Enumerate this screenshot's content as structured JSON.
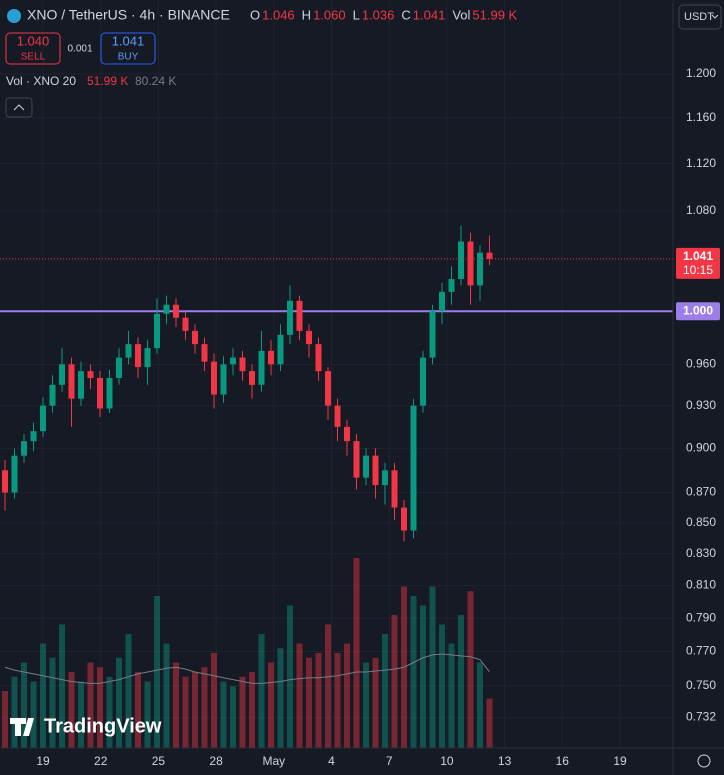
{
  "chart_data": {
    "type": "candlestick",
    "title": "XNO / TetherUS · 4h · BINANCE",
    "header": {
      "o_label": "O",
      "o": "1.046",
      "h_label": "H",
      "h": "1.060",
      "l_label": "L",
      "l": "1.036",
      "c_label": "C",
      "c": "1.041",
      "vol_label": "Vol",
      "vol": "51.99 K"
    },
    "trade": {
      "sell_price": "1.040",
      "sell": "SELL",
      "spread": "0.001",
      "buy_price": "1.041",
      "buy": "BUY"
    },
    "volume_legend": {
      "label": "Vol · XNO 20",
      "vol": "51.99 K",
      "ma": "80.24 K"
    },
    "currency": "USDT",
    "logo": "TradingView",
    "y_scale": "log",
    "grid": true,
    "up_color": "#089981",
    "down_color": "#f23645",
    "ylim": [
      0.715,
      1.27
    ],
    "yticks": [
      {
        "value": 1.2,
        "label": "1.200"
      },
      {
        "value": 1.16,
        "label": "1.160"
      },
      {
        "value": 1.12,
        "label": "1.120"
      },
      {
        "value": 1.08,
        "label": "1.080"
      },
      {
        "value": 0.96,
        "label": "0.960"
      },
      {
        "value": 0.93,
        "label": "0.930"
      },
      {
        "value": 0.9,
        "label": "0.900"
      },
      {
        "value": 0.87,
        "label": "0.870"
      },
      {
        "value": 0.85,
        "label": "0.850"
      },
      {
        "value": 0.83,
        "label": "0.830"
      },
      {
        "value": 0.81,
        "label": "0.810"
      },
      {
        "value": 0.79,
        "label": "0.790"
      },
      {
        "value": 0.77,
        "label": "0.770"
      },
      {
        "value": 0.75,
        "label": "0.750"
      },
      {
        "value": 0.732,
        "label": "0.732"
      }
    ],
    "xticks": [
      "19",
      "22",
      "25",
      "28",
      "May",
      "4",
      "7",
      "10",
      "13",
      "16",
      "19"
    ],
    "hline": {
      "value": 1.0,
      "label": "1.000",
      "color": "#9c7ee8"
    },
    "last_price": {
      "value": 1.041,
      "label": "1.041",
      "countdown": "10:15",
      "color": "#f23645"
    },
    "candles": [
      [
        0.885,
        0.892,
        0.858,
        0.87
      ],
      [
        0.87,
        0.9,
        0.866,
        0.895
      ],
      [
        0.895,
        0.91,
        0.89,
        0.905
      ],
      [
        0.905,
        0.918,
        0.898,
        0.912
      ],
      [
        0.912,
        0.936,
        0.908,
        0.93
      ],
      [
        0.93,
        0.952,
        0.925,
        0.945
      ],
      [
        0.945,
        0.972,
        0.94,
        0.96
      ],
      [
        0.96,
        0.965,
        0.915,
        0.935
      ],
      [
        0.935,
        0.962,
        0.93,
        0.955
      ],
      [
        0.955,
        0.96,
        0.942,
        0.95
      ],
      [
        0.95,
        0.955,
        0.922,
        0.928
      ],
      [
        0.928,
        0.956,
        0.925,
        0.95
      ],
      [
        0.95,
        0.972,
        0.945,
        0.965
      ],
      [
        0.965,
        0.985,
        0.96,
        0.975
      ],
      [
        0.975,
        0.98,
        0.95,
        0.958
      ],
      [
        0.958,
        0.978,
        0.945,
        0.972
      ],
      [
        0.972,
        1.01,
        0.968,
        0.998
      ],
      [
        0.998,
        1.012,
        0.99,
        1.005
      ],
      [
        1.005,
        1.01,
        0.988,
        0.995
      ],
      [
        0.995,
        1.0,
        0.978,
        0.985
      ],
      [
        0.985,
        0.99,
        0.968,
        0.975
      ],
      [
        0.975,
        0.98,
        0.955,
        0.962
      ],
      [
        0.962,
        0.968,
        0.928,
        0.938
      ],
      [
        0.938,
        0.966,
        0.932,
        0.96
      ],
      [
        0.96,
        0.972,
        0.952,
        0.965
      ],
      [
        0.965,
        0.97,
        0.948,
        0.955
      ],
      [
        0.955,
        0.96,
        0.935,
        0.945
      ],
      [
        0.945,
        0.985,
        0.94,
        0.97
      ],
      [
        0.97,
        0.978,
        0.952,
        0.96
      ],
      [
        0.96,
        0.99,
        0.955,
        0.982
      ],
      [
        0.982,
        1.02,
        0.975,
        1.008
      ],
      [
        1.008,
        1.012,
        0.978,
        0.985
      ],
      [
        0.985,
        0.99,
        0.965,
        0.975
      ],
      [
        0.975,
        0.98,
        0.948,
        0.955
      ],
      [
        0.955,
        0.958,
        0.92,
        0.93
      ],
      [
        0.93,
        0.935,
        0.905,
        0.915
      ],
      [
        0.915,
        0.92,
        0.895,
        0.905
      ],
      [
        0.905,
        0.91,
        0.872,
        0.88
      ],
      [
        0.88,
        0.9,
        0.875,
        0.895
      ],
      [
        0.895,
        0.9,
        0.866,
        0.875
      ],
      [
        0.875,
        0.89,
        0.862,
        0.885
      ],
      [
        0.885,
        0.89,
        0.852,
        0.86
      ],
      [
        0.86,
        0.865,
        0.838,
        0.845
      ],
      [
        0.845,
        0.935,
        0.84,
        0.93
      ],
      [
        0.93,
        0.97,
        0.925,
        0.965
      ],
      [
        0.965,
        1.005,
        0.96,
        1.0
      ],
      [
        1.0,
        1.022,
        0.99,
        1.015
      ],
      [
        1.015,
        1.035,
        1.005,
        1.025
      ],
      [
        1.025,
        1.068,
        1.02,
        1.055
      ],
      [
        1.055,
        1.062,
        1.005,
        1.02
      ],
      [
        1.02,
        1.052,
        1.008,
        1.046
      ],
      [
        1.046,
        1.06,
        1.036,
        1.041
      ]
    ],
    "volume": [
      60000,
      75000,
      90000,
      70000,
      110000,
      95000,
      130000,
      80000,
      70000,
      90000,
      85000,
      75000,
      95000,
      120000,
      80000,
      70000,
      160000,
      110000,
      90000,
      75000,
      80000,
      85000,
      100000,
      70000,
      65000,
      75000,
      80000,
      120000,
      90000,
      105000,
      150000,
      110000,
      95000,
      100000,
      130000,
      100000,
      110000,
      200000,
      90000,
      95000,
      120000,
      140000,
      170000,
      160000,
      150000,
      170000,
      130000,
      110000,
      140000,
      165000,
      90000,
      51990
    ],
    "volume_ma": [
      85000,
      82000,
      80000,
      78000,
      76000,
      74000,
      72000,
      70000,
      69000,
      68000,
      68000,
      70000,
      72000,
      75000,
      78000,
      80000,
      82000,
      84000,
      85000,
      83000,
      80000,
      78000,
      76000,
      74000,
      72000,
      70000,
      68000,
      68000,
      69000,
      70000,
      72000,
      73000,
      74000,
      74000,
      75000,
      76000,
      78000,
      80000,
      80000,
      81000,
      82000,
      83000,
      85000,
      90000,
      95000,
      98000,
      99000,
      98000,
      97000,
      96000,
      93000,
      80240
    ]
  }
}
